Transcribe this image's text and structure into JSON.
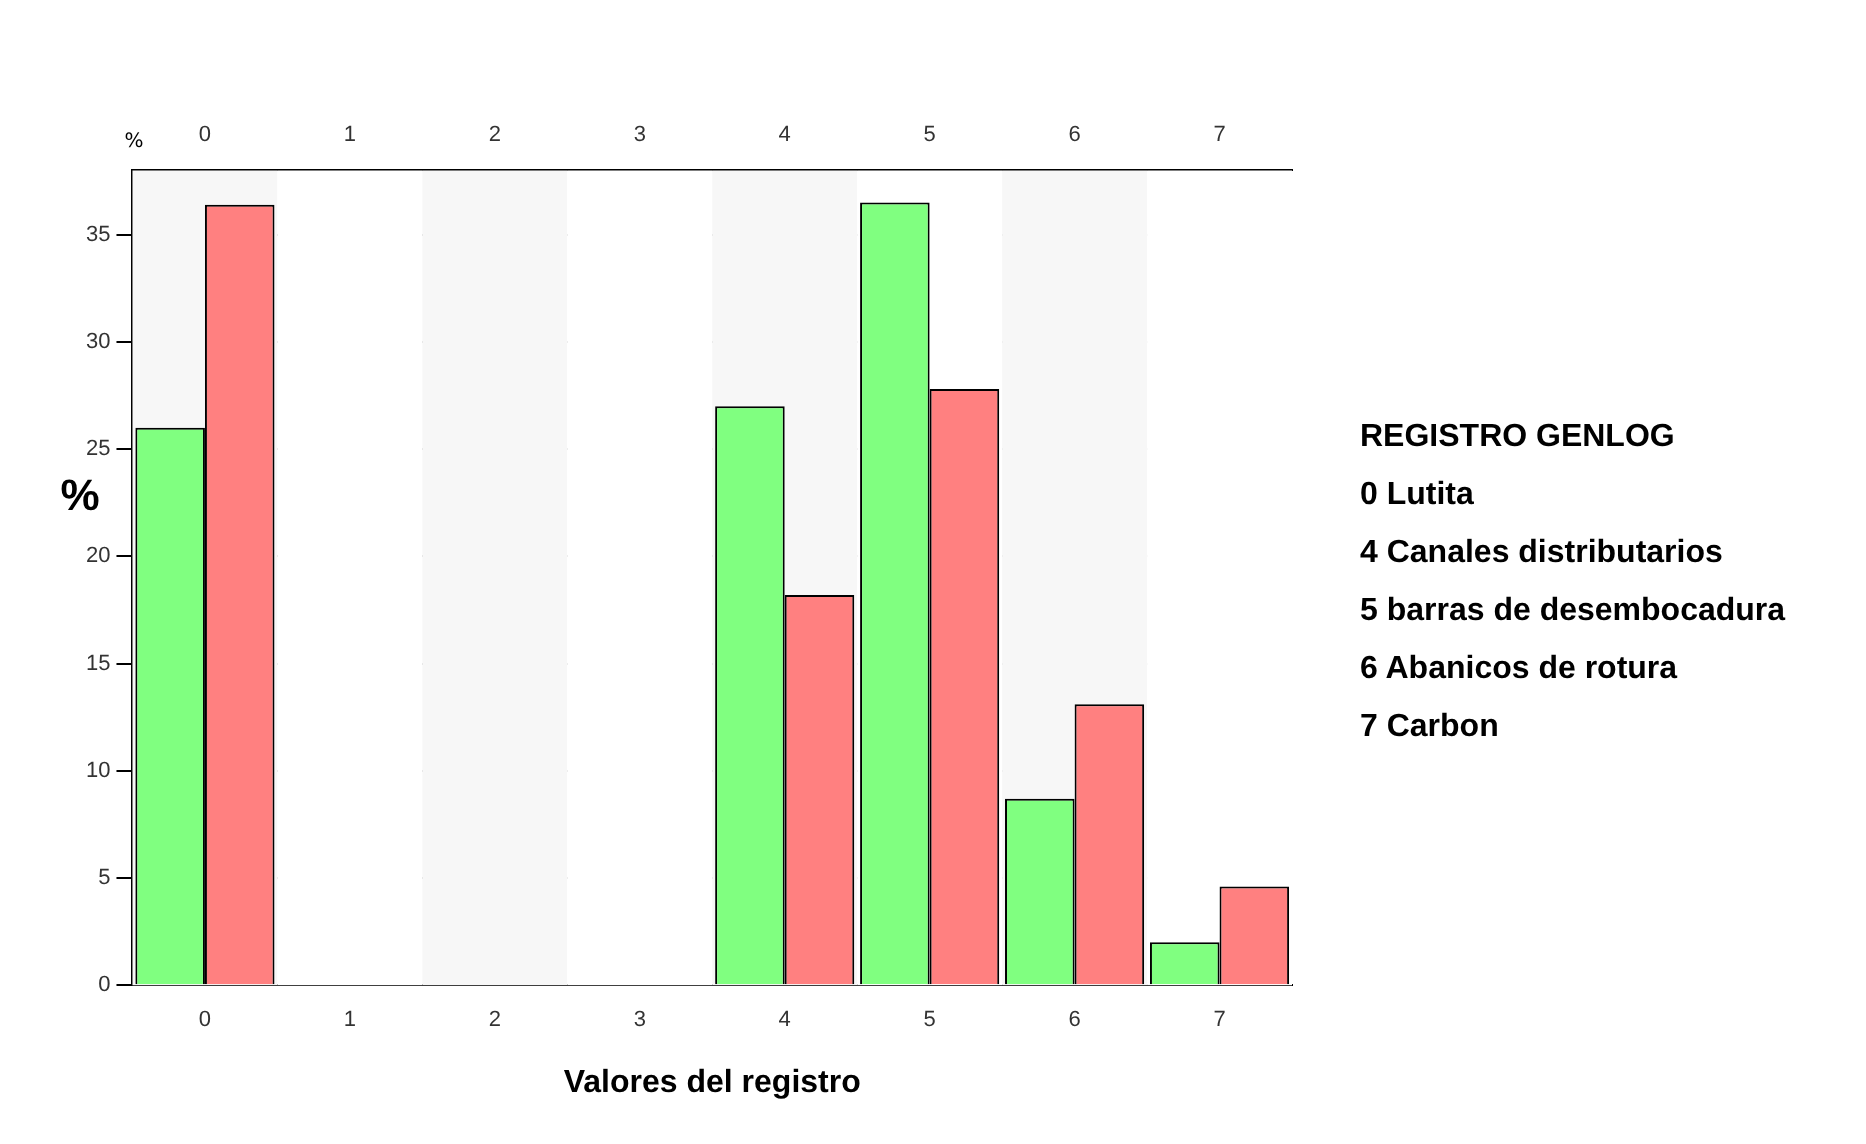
{
  "chart_data": {
    "type": "bar",
    "xlabel": "Valores del registro",
    "ylabel": "%",
    "categories": [
      "0",
      "1",
      "2",
      "3",
      "4",
      "5",
      "6",
      "7"
    ],
    "series": [
      {
        "color": "#80ff80",
        "values": [
          26.0,
          0,
          0,
          0,
          27.0,
          36.5,
          8.7,
          2.0
        ]
      },
      {
        "color": "#ff8080",
        "values": [
          36.4,
          0,
          0,
          0,
          18.2,
          27.8,
          13.1,
          4.6
        ]
      }
    ],
    "ylim": [
      0,
      38
    ],
    "yticks": [
      0,
      5,
      10,
      15,
      20,
      25,
      30,
      35
    ],
    "grid": "y",
    "legend": false,
    "annotations": [
      "%",
      "REGISTRO GENLOG",
      "0 Lutita",
      "4 Canales distributarios",
      "5 barras de desembocadura",
      "6 Abanicos de rotura",
      "7 Carbon"
    ]
  }
}
